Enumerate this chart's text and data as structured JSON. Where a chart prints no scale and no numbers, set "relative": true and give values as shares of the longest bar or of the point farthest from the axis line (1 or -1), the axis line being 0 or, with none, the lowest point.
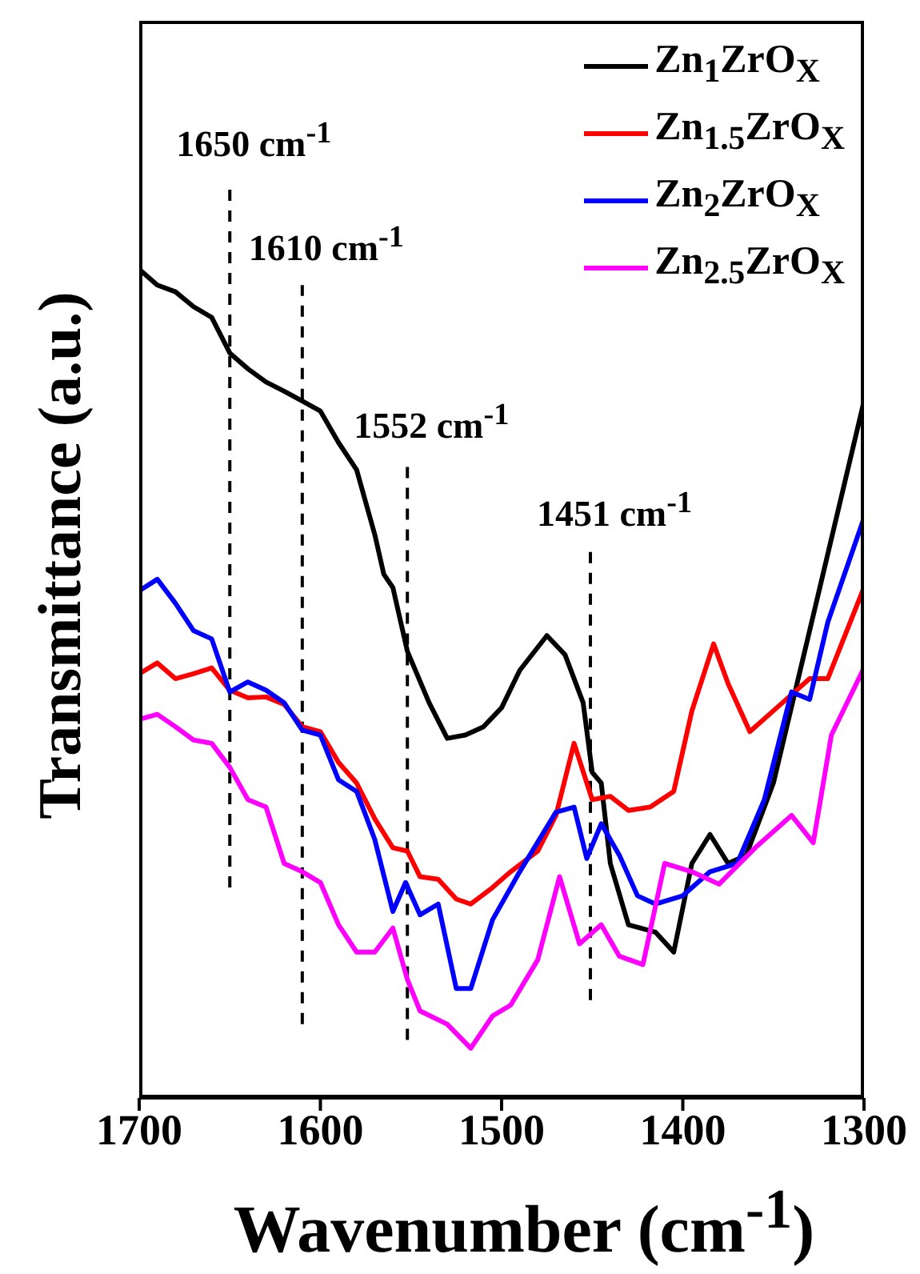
{
  "chart_data": {
    "type": "line",
    "relative": true,
    "xlabel": "Wavenumber (cm$^{-1}$)",
    "ylabel": "Transmittance (a.u.)",
    "xlim": [
      1700,
      1300
    ],
    "xticks": [
      1700,
      1600,
      1500,
      1400,
      1300
    ],
    "legend": "top right",
    "grid": false,
    "marker": "none",
    "line_style": "solid",
    "ref_lines": [
      {
        "axis": "x",
        "value": 1650,
        "label": "1650 cm$^{-1}$",
        "line_style": "dashed",
        "color": "#000000"
      },
      {
        "axis": "x",
        "value": 1610,
        "label": "1610 cm$^{-1}$",
        "line_style": "dashed",
        "color": "#000000"
      },
      {
        "axis": "x",
        "value": 1552,
        "label": "1552 cm$^{-1}$",
        "line_style": "dashed",
        "color": "#000000"
      },
      {
        "axis": "x",
        "value": 1451,
        "label": "1451 cm$^{-1}$",
        "line_style": "dashed",
        "color": "#000000"
      }
    ],
    "series": [
      {
        "name": "Zn$_{1}$ZrO$_{X}$",
        "color": "#000000",
        "x": [
          1700,
          1690,
          1680,
          1670,
          1660,
          1650,
          1640,
          1630,
          1620,
          1610,
          1600,
          1590,
          1580,
          1570,
          1565,
          1560,
          1552,
          1540,
          1530,
          1520,
          1510,
          1500,
          1490,
          1475,
          1465,
          1455,
          1450,
          1445,
          1440,
          1430,
          1415,
          1405,
          1395,
          1385,
          1375,
          1365,
          1350,
          1330,
          1300
        ],
        "values": [
          1.0,
          0.981,
          0.973,
          0.955,
          0.942,
          0.899,
          0.88,
          0.864,
          0.853,
          0.841,
          0.829,
          0.791,
          0.758,
          0.68,
          0.632,
          0.616,
          0.539,
          0.477,
          0.434,
          0.438,
          0.448,
          0.471,
          0.516,
          0.558,
          0.535,
          0.477,
          0.393,
          0.38,
          0.283,
          0.209,
          0.2,
          0.176,
          0.283,
          0.318,
          0.283,
          0.293,
          0.38,
          0.564,
          0.841
        ]
      },
      {
        "name": "Zn$_{1.5}$ZrO$_{X}$",
        "color": "#ff0000",
        "x": [
          1700,
          1690,
          1680,
          1670,
          1660,
          1650,
          1640,
          1630,
          1620,
          1610,
          1600,
          1590,
          1580,
          1570,
          1560,
          1552,
          1545,
          1535,
          1525,
          1517,
          1505,
          1495,
          1480,
          1470,
          1460,
          1450,
          1440,
          1430,
          1418,
          1405,
          1395,
          1383,
          1375,
          1363,
          1345,
          1330,
          1320,
          1300
        ],
        "values": [
          0.512,
          0.525,
          0.506,
          0.512,
          0.519,
          0.492,
          0.483,
          0.484,
          0.475,
          0.448,
          0.442,
          0.405,
          0.38,
          0.337,
          0.302,
          0.298,
          0.267,
          0.264,
          0.24,
          0.234,
          0.254,
          0.273,
          0.298,
          0.341,
          0.428,
          0.36,
          0.364,
          0.347,
          0.351,
          0.37,
          0.467,
          0.548,
          0.5,
          0.442,
          0.477,
          0.506,
          0.506,
          0.616
        ]
      },
      {
        "name": "Zn$_{2}$ZrO$_{X}$",
        "color": "#0000ff",
        "x": [
          1700,
          1690,
          1680,
          1670,
          1660,
          1650,
          1640,
          1630,
          1620,
          1610,
          1600,
          1590,
          1580,
          1570,
          1560,
          1553,
          1545,
          1535,
          1525,
          1517,
          1505,
          1490,
          1470,
          1460,
          1453,
          1445,
          1435,
          1425,
          1415,
          1400,
          1385,
          1370,
          1355,
          1340,
          1330,
          1320,
          1300
        ],
        "values": [
          0.612,
          0.626,
          0.597,
          0.564,
          0.554,
          0.49,
          0.502,
          0.492,
          0.477,
          0.444,
          0.438,
          0.384,
          0.37,
          0.312,
          0.225,
          0.26,
          0.221,
          0.234,
          0.132,
          0.132,
          0.215,
          0.273,
          0.345,
          0.351,
          0.289,
          0.331,
          0.293,
          0.244,
          0.234,
          0.244,
          0.273,
          0.283,
          0.36,
          0.49,
          0.481,
          0.574,
          0.7
        ]
      },
      {
        "name": "Zn$_{2.5}$ZrO$_{X}$",
        "color": "#ff00ff",
        "x": [
          1700,
          1690,
          1680,
          1670,
          1660,
          1650,
          1640,
          1630,
          1620,
          1610,
          1600,
          1590,
          1580,
          1570,
          1560,
          1552,
          1545,
          1530,
          1517,
          1505,
          1495,
          1480,
          1468,
          1457,
          1445,
          1435,
          1422,
          1410,
          1395,
          1380,
          1360,
          1340,
          1328,
          1318,
          1300
        ],
        "values": [
          0.457,
          0.463,
          0.448,
          0.432,
          0.428,
          0.399,
          0.36,
          0.351,
          0.283,
          0.273,
          0.26,
          0.209,
          0.176,
          0.176,
          0.205,
          0.143,
          0.105,
          0.089,
          0.06,
          0.099,
          0.112,
          0.167,
          0.267,
          0.186,
          0.209,
          0.171,
          0.161,
          0.283,
          0.273,
          0.258,
          0.302,
          0.341,
          0.308,
          0.438,
          0.519
        ]
      }
    ]
  }
}
